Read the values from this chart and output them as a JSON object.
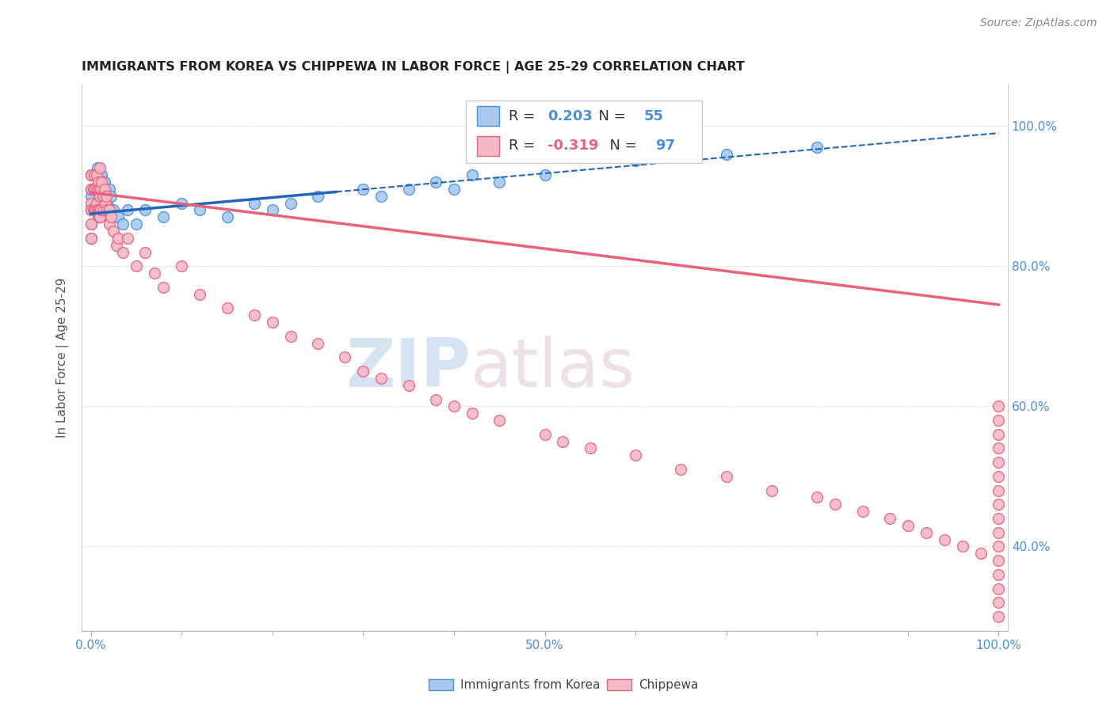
{
  "title": "IMMIGRANTS FROM KOREA VS CHIPPEWA IN LABOR FORCE | AGE 25-29 CORRELATION CHART",
  "source_text": "Source: ZipAtlas.com",
  "ylabel": "In Labor Force | Age 25-29",
  "xlim": [
    -0.01,
    1.01
  ],
  "ylim": [
    0.28,
    1.06
  ],
  "y_ticks": [
    0.4,
    0.6,
    0.8,
    1.0
  ],
  "y_tick_labels": [
    "40.0%",
    "60.0%",
    "80.0%",
    "100.0%"
  ],
  "x_tick_positions": [
    0.0,
    0.5,
    1.0
  ],
  "x_tick_labels": [
    "0.0%",
    "50.0%",
    "100.0%"
  ],
  "legend_korea_label": "Immigrants from Korea",
  "legend_chippewa_label": "Chippewa",
  "korea_r": "0.203",
  "korea_n": "55",
  "chippewa_r": "-0.319",
  "chippewa_n": "97",
  "watermark_zip": "ZIP",
  "watermark_atlas": "atlas",
  "korea_color": "#a8c8f0",
  "chippewa_color": "#f5b8c8",
  "korea_edge_color": "#4a90d9",
  "chippewa_edge_color": "#e8637a",
  "korea_trend_color": "#2266bb",
  "chippewa_trend_color": "#e8637a",
  "korea_trend_start_x": 0.0,
  "korea_trend_start_y": 0.875,
  "korea_trend_solid_end_x": 0.27,
  "korea_trend_end_x": 1.0,
  "korea_trend_end_y": 0.99,
  "chippewa_trend_start_x": 0.0,
  "chippewa_trend_start_y": 0.905,
  "chippewa_trend_end_x": 1.0,
  "chippewa_trend_end_y": 0.745,
  "korea_scatter_x": [
    0.0,
    0.0,
    0.0,
    0.0,
    0.0,
    0.0,
    0.0,
    0.005,
    0.006,
    0.007,
    0.007,
    0.008,
    0.008,
    0.009,
    0.01,
    0.01,
    0.01,
    0.011,
    0.011,
    0.012,
    0.012,
    0.013,
    0.014,
    0.015,
    0.016,
    0.017,
    0.018,
    0.02,
    0.021,
    0.022,
    0.025,
    0.03,
    0.035,
    0.04,
    0.05,
    0.06,
    0.08,
    0.1,
    0.12,
    0.15,
    0.18,
    0.2,
    0.22,
    0.25,
    0.3,
    0.32,
    0.35,
    0.38,
    0.4,
    0.42,
    0.45,
    0.5,
    0.6,
    0.7,
    0.8
  ],
  "korea_scatter_y": [
    0.88,
    0.9,
    0.93,
    0.86,
    0.84,
    0.88,
    0.91,
    0.91,
    0.89,
    0.94,
    0.88,
    0.92,
    0.87,
    0.9,
    0.93,
    0.89,
    0.87,
    0.91,
    0.88,
    0.93,
    0.89,
    0.91,
    0.88,
    0.92,
    0.9,
    0.88,
    0.89,
    0.91,
    0.88,
    0.9,
    0.88,
    0.87,
    0.86,
    0.88,
    0.86,
    0.88,
    0.87,
    0.89,
    0.88,
    0.87,
    0.89,
    0.88,
    0.89,
    0.9,
    0.91,
    0.9,
    0.91,
    0.92,
    0.91,
    0.93,
    0.92,
    0.93,
    0.95,
    0.96,
    0.97
  ],
  "chippewa_scatter_x": [
    0.0,
    0.0,
    0.0,
    0.0,
    0.0,
    0.0,
    0.0,
    0.0,
    0.003,
    0.003,
    0.004,
    0.004,
    0.005,
    0.005,
    0.006,
    0.006,
    0.007,
    0.007,
    0.008,
    0.008,
    0.009,
    0.009,
    0.01,
    0.01,
    0.01,
    0.011,
    0.011,
    0.012,
    0.013,
    0.014,
    0.015,
    0.016,
    0.017,
    0.018,
    0.02,
    0.02,
    0.022,
    0.025,
    0.028,
    0.03,
    0.035,
    0.04,
    0.05,
    0.06,
    0.07,
    0.08,
    0.1,
    0.12,
    0.15,
    0.18,
    0.2,
    0.22,
    0.25,
    0.28,
    0.3,
    0.32,
    0.35,
    0.38,
    0.4,
    0.42,
    0.45,
    0.5,
    0.52,
    0.55,
    0.6,
    0.65,
    0.7,
    0.75,
    0.8,
    0.82,
    0.85,
    0.88,
    0.9,
    0.92,
    0.94,
    0.96,
    0.98,
    1.0,
    1.0,
    1.0,
    1.0,
    1.0,
    1.0,
    1.0,
    1.0,
    1.0,
    1.0,
    1.0,
    1.0,
    1.0,
    1.0,
    1.0,
    1.0
  ],
  "chippewa_scatter_y": [
    0.93,
    0.91,
    0.89,
    0.88,
    0.86,
    0.84,
    0.93,
    0.88,
    0.91,
    0.88,
    0.93,
    0.88,
    0.91,
    0.88,
    0.93,
    0.89,
    0.91,
    0.88,
    0.92,
    0.88,
    0.91,
    0.88,
    0.94,
    0.9,
    0.87,
    0.91,
    0.88,
    0.92,
    0.9,
    0.88,
    0.91,
    0.89,
    0.9,
    0.88,
    0.88,
    0.86,
    0.87,
    0.85,
    0.83,
    0.84,
    0.82,
    0.84,
    0.8,
    0.82,
    0.79,
    0.77,
    0.8,
    0.76,
    0.74,
    0.73,
    0.72,
    0.7,
    0.69,
    0.67,
    0.65,
    0.64,
    0.63,
    0.61,
    0.6,
    0.59,
    0.58,
    0.56,
    0.55,
    0.54,
    0.53,
    0.51,
    0.5,
    0.48,
    0.47,
    0.46,
    0.45,
    0.44,
    0.43,
    0.42,
    0.41,
    0.4,
    0.39,
    0.6,
    0.58,
    0.56,
    0.54,
    0.52,
    0.5,
    0.48,
    0.46,
    0.44,
    0.42,
    0.4,
    0.38,
    0.36,
    0.34,
    0.32,
    0.3
  ]
}
